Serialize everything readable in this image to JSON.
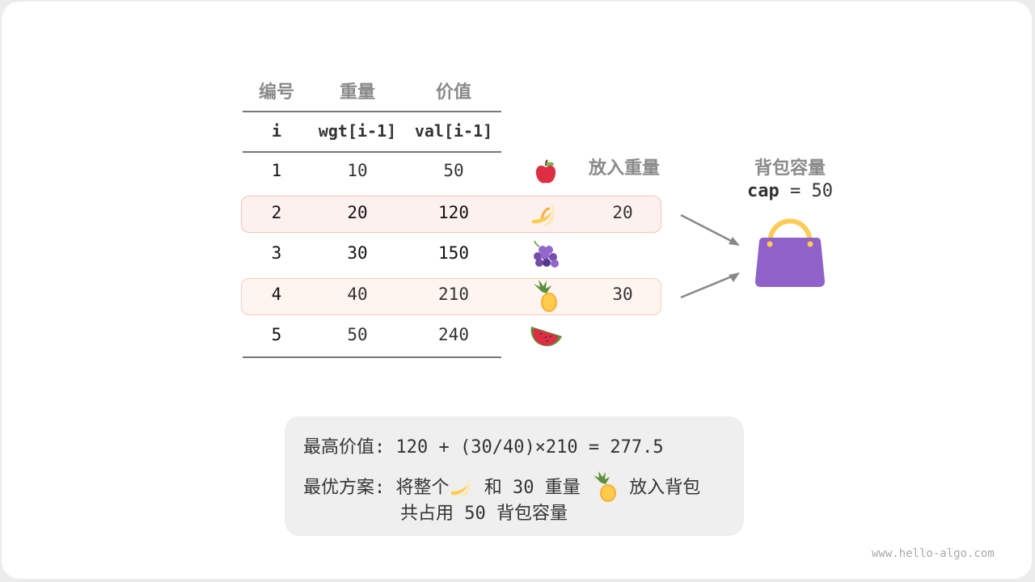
{
  "table": {
    "headers": [
      "编号",
      "重量",
      "价值"
    ],
    "subheaders": [
      "i",
      "wgt[i-1]",
      "val[i-1]"
    ],
    "rows": [
      {
        "i": "1",
        "wgt": "10",
        "val": "50",
        "fruit": "apple",
        "put": ""
      },
      {
        "i": "2",
        "wgt": "20",
        "val": "120",
        "fruit": "banana",
        "put": "20"
      },
      {
        "i": "3",
        "wgt": "30",
        "val": "150",
        "fruit": "grapes",
        "put": ""
      },
      {
        "i": "4",
        "wgt": "40",
        "val": "210",
        "fruit": "pineapple",
        "put": "30"
      },
      {
        "i": "5",
        "wgt": "50",
        "val": "240",
        "fruit": "watermelon",
        "put": ""
      }
    ],
    "put_header": "放入重量"
  },
  "knapsack": {
    "title": "背包容量",
    "cap_label": "cap",
    "cap_eq": "= 50",
    "icon": "handbag-icon",
    "color": "#9061c9"
  },
  "summary": {
    "line1_label": "最高价值:",
    "line1_value": "120 + (30/40)×210 = 277.5",
    "line2_label": "最优方案:",
    "line2_a": "将整个",
    "line2_b": "和 30 重量",
    "line2_c": "放入背包",
    "line3": "共占用 50 背包容量"
  },
  "colors": {
    "highlight1_bg": "#fdf1f0",
    "highlight1_border": "#f6c2bd",
    "highlight2_bg": "#fef5f0",
    "highlight2_border": "#f9cdb8"
  },
  "watermark": "www.hello-algo.com"
}
